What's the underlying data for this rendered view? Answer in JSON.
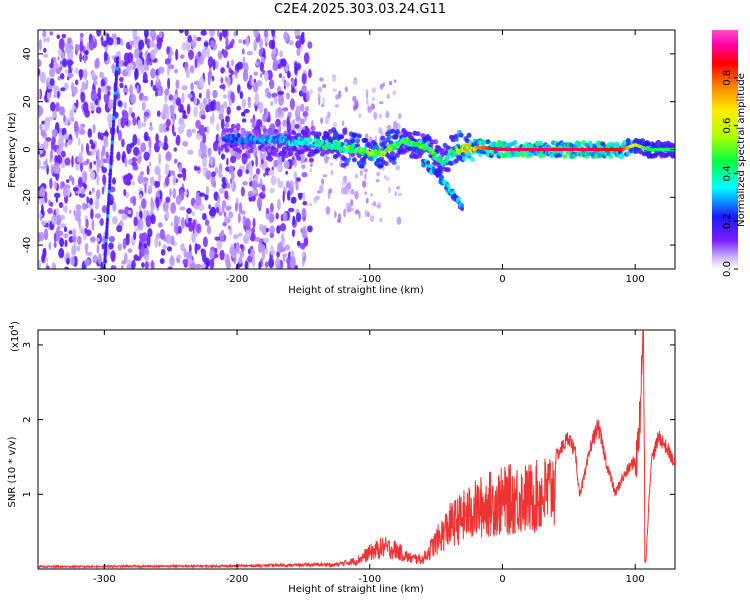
{
  "title": "C2E4.2025.303.03.24.G11",
  "chart_data": [
    {
      "type": "heatmap",
      "xlabel": "Height of straight line (km)",
      "ylabel": "Frequency (Hz)",
      "xlim": [
        -350,
        130
      ],
      "ylim": [
        -50,
        50
      ],
      "xticks": [
        -300,
        -200,
        -100,
        0,
        100
      ],
      "yticks": [
        -40,
        -20,
        0,
        20,
        40
      ],
      "colorbar": {
        "label": "Normalized spectral amplitude",
        "range": [
          0.0,
          1.0
        ],
        "ticks": [
          "0.0",
          "0.2",
          "0.4",
          "0.6",
          "0.8"
        ],
        "tick_values": [
          0.0,
          0.2,
          0.4,
          0.6,
          0.8
        ],
        "colormap": [
          "#ffffff",
          "#c9b3ff",
          "#7a1fff",
          "#1a1aff",
          "#00ffff",
          "#00ff44",
          "#aaff00",
          "#ffee00",
          "#ff8800",
          "#ff0000",
          "#ff00aa",
          "#ff55cc"
        ]
      },
      "features": {
        "noise_region_x": [
          -350,
          -145
        ],
        "vertical_streak": {
          "x_top": -290,
          "x_bottom": -300,
          "y_top": 38,
          "y_bottom": -50
        },
        "ridge": [
          {
            "x": -210,
            "y": 5,
            "amp": 0.25
          },
          {
            "x": -180,
            "y": 4,
            "amp": 0.3
          },
          {
            "x": -150,
            "y": 3,
            "amp": 0.35
          },
          {
            "x": -130,
            "y": 2,
            "amp": 0.45
          },
          {
            "x": -110,
            "y": 0,
            "amp": 0.5
          },
          {
            "x": -95,
            "y": -2,
            "amp": 0.55
          },
          {
            "x": -75,
            "y": 3,
            "amp": 0.45
          },
          {
            "x": -60,
            "y": 2,
            "amp": 0.5
          },
          {
            "x": -45,
            "y": -5,
            "amp": 0.4
          },
          {
            "x": -35,
            "y": 0,
            "amp": 0.55
          },
          {
            "x": -20,
            "y": 1,
            "amp": 0.75
          },
          {
            "x": 0,
            "y": 0,
            "amp": 0.9
          },
          {
            "x": 30,
            "y": 0,
            "amp": 0.9
          },
          {
            "x": 60,
            "y": 0,
            "amp": 0.9
          },
          {
            "x": 90,
            "y": 0,
            "amp": 0.85
          },
          {
            "x": 100,
            "y": 2,
            "amp": 0.6
          },
          {
            "x": 110,
            "y": 0,
            "amp": 0.45
          },
          {
            "x": 130,
            "y": 0,
            "amp": 0.4
          }
        ],
        "branch": [
          {
            "x": -60,
            "y": -5
          },
          {
            "x": -50,
            "y": -10
          },
          {
            "x": -40,
            "y": -17
          },
          {
            "x": -30,
            "y": -24
          }
        ]
      }
    },
    {
      "type": "line",
      "xlabel": "Height of straight line (km)",
      "ylabel": "SNR (10 * v/v)",
      "multiplier": "(x10",
      "multiplier_exp": "4",
      "multiplier_close": ")",
      "xlim": [
        -350,
        130
      ],
      "ylim": [
        0,
        3.2
      ],
      "xticks": [
        -300,
        -200,
        -100,
        0,
        100
      ],
      "yticks": [
        1,
        2,
        3
      ],
      "color": "#ee3333",
      "envelope": [
        {
          "x": -350,
          "y": 0.03
        },
        {
          "x": -200,
          "y": 0.04
        },
        {
          "x": -130,
          "y": 0.06
        },
        {
          "x": -110,
          "y": 0.15
        },
        {
          "x": -100,
          "y": 0.3
        },
        {
          "x": -90,
          "y": 0.4
        },
        {
          "x": -80,
          "y": 0.35
        },
        {
          "x": -70,
          "y": 0.2
        },
        {
          "x": -60,
          "y": 0.18
        },
        {
          "x": -50,
          "y": 0.5
        },
        {
          "x": -40,
          "y": 0.8
        },
        {
          "x": -30,
          "y": 0.95
        },
        {
          "x": -20,
          "y": 1.1
        },
        {
          "x": -10,
          "y": 1.2
        },
        {
          "x": 0,
          "y": 1.25
        },
        {
          "x": 10,
          "y": 1.3
        },
        {
          "x": 20,
          "y": 1.3
        },
        {
          "x": 30,
          "y": 1.35
        },
        {
          "x": 40,
          "y": 1.55
        },
        {
          "x": 50,
          "y": 1.85
        },
        {
          "x": 55,
          "y": 1.6
        },
        {
          "x": 58,
          "y": 1.05
        },
        {
          "x": 62,
          "y": 1.3
        },
        {
          "x": 67,
          "y": 1.75
        },
        {
          "x": 72,
          "y": 2.0
        },
        {
          "x": 78,
          "y": 1.5
        },
        {
          "x": 85,
          "y": 1.05
        },
        {
          "x": 90,
          "y": 1.25
        },
        {
          "x": 97,
          "y": 1.45
        },
        {
          "x": 102,
          "y": 1.55
        },
        {
          "x": 106,
          "y": 3.2
        },
        {
          "x": 108,
          "y": 0.1
        },
        {
          "x": 112,
          "y": 1.5
        },
        {
          "x": 118,
          "y": 1.85
        },
        {
          "x": 125,
          "y": 1.65
        },
        {
          "x": 130,
          "y": 1.45
        }
      ]
    }
  ]
}
